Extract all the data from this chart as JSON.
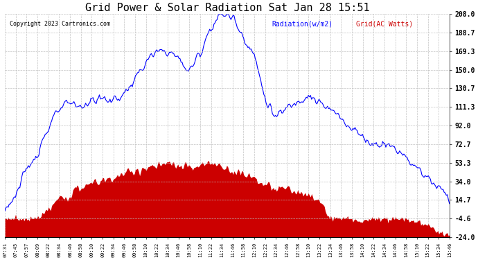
{
  "title": "Grid Power & Solar Radiation Sat Jan 28 15:51",
  "copyright": "Copyright 2023 Cartronics.com",
  "legend_radiation": "Radiation(w/m2)",
  "legend_grid": "Grid(AC Watts)",
  "radiation_color": "#0000ff",
  "grid_color": "#cc0000",
  "background_color": "#ffffff",
  "plot_bg_color": "#ffffff",
  "grid_line_color": "#bbbbbb",
  "yticks": [
    208.0,
    188.7,
    169.3,
    150.0,
    130.7,
    111.3,
    92.0,
    72.7,
    53.3,
    34.0,
    14.7,
    -4.6,
    -24.0
  ],
  "ymin": -24.0,
  "ymax": 208.0,
  "xtick_labels": [
    "07:31",
    "07:45",
    "07:57",
    "08:09",
    "08:22",
    "08:34",
    "08:46",
    "08:58",
    "09:10",
    "09:22",
    "09:34",
    "09:46",
    "09:58",
    "10:10",
    "10:22",
    "10:34",
    "10:46",
    "10:58",
    "11:10",
    "11:22",
    "11:34",
    "11:46",
    "11:58",
    "12:10",
    "12:22",
    "12:34",
    "12:46",
    "12:58",
    "13:10",
    "13:22",
    "13:34",
    "13:46",
    "13:58",
    "14:10",
    "14:22",
    "14:34",
    "14:46",
    "14:58",
    "15:10",
    "15:22",
    "15:34",
    "15:46"
  ]
}
